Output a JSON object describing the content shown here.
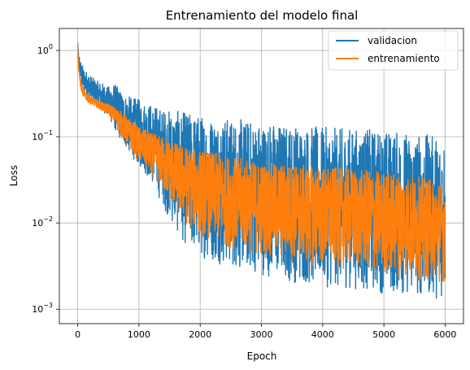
{
  "chart_data": {
    "type": "line",
    "title": "Entrenamiento del modelo final",
    "xlabel": "Epoch",
    "ylabel": "Loss",
    "yscale": "log",
    "xlim": [
      -300,
      6300
    ],
    "ylim": [
      0.00068,
      1.8
    ],
    "grid": true,
    "legend_position": "top-right",
    "xticks": [
      {
        "value": 0,
        "label": "0"
      },
      {
        "value": 1000,
        "label": "1000"
      },
      {
        "value": 2000,
        "label": "2000"
      },
      {
        "value": 3000,
        "label": "3000"
      },
      {
        "value": 4000,
        "label": "4000"
      },
      {
        "value": 5000,
        "label": "5000"
      },
      {
        "value": 6000,
        "label": "6000"
      }
    ],
    "yticks": [
      {
        "value": 1,
        "base": "10",
        "exp": "0"
      },
      {
        "value": 0.1,
        "base": "10",
        "exp": "−1"
      },
      {
        "value": 0.01,
        "base": "10",
        "exp": "−2"
      },
      {
        "value": 0.001,
        "base": "10",
        "exp": "−3"
      }
    ],
    "series": [
      {
        "name": "validacion",
        "color": "#1f77b4",
        "envelope": {
          "x": [
            0,
            10,
            50,
            100,
            200,
            300,
            400,
            500,
            600,
            700,
            800,
            1000,
            1200,
            1400,
            1600,
            1800,
            2000,
            2500,
            3000,
            3500,
            4000,
            4500,
            5000,
            5500,
            6000
          ],
          "upper": [
            1.3,
            0.95,
            0.75,
            0.62,
            0.52,
            0.45,
            0.42,
            0.38,
            0.42,
            0.34,
            0.3,
            0.27,
            0.24,
            0.21,
            0.2,
            0.19,
            0.18,
            0.165,
            0.15,
            0.14,
            0.13,
            0.125,
            0.12,
            0.11,
            0.1
          ],
          "lower": [
            1.0,
            0.6,
            0.4,
            0.33,
            0.27,
            0.23,
            0.2,
            0.17,
            0.12,
            0.09,
            0.07,
            0.045,
            0.03,
            0.015,
            0.008,
            0.005,
            0.004,
            0.003,
            0.0025,
            0.002,
            0.0018,
            0.0017,
            0.0015,
            0.0014,
            0.0013
          ]
        }
      },
      {
        "name": "entrenamiento",
        "color": "#ff7f0e",
        "envelope": {
          "x": [
            0,
            10,
            50,
            100,
            200,
            300,
            400,
            500,
            600,
            700,
            800,
            1000,
            1200,
            1400,
            1600,
            1800,
            2000,
            2500,
            3000,
            3500,
            4000,
            4500,
            5000,
            5500,
            6000
          ],
          "upper": [
            1.25,
            0.7,
            0.45,
            0.36,
            0.3,
            0.27,
            0.25,
            0.24,
            0.22,
            0.2,
            0.17,
            0.13,
            0.11,
            0.1,
            0.085,
            0.075,
            0.07,
            0.06,
            0.05,
            0.048,
            0.045,
            0.042,
            0.04,
            0.035,
            0.03
          ],
          "lower": [
            1.0,
            0.55,
            0.35,
            0.28,
            0.24,
            0.22,
            0.2,
            0.18,
            0.14,
            0.1,
            0.08,
            0.05,
            0.035,
            0.022,
            0.013,
            0.009,
            0.007,
            0.005,
            0.004,
            0.0035,
            0.003,
            0.0028,
            0.0025,
            0.0022,
            0.002
          ]
        }
      }
    ]
  }
}
